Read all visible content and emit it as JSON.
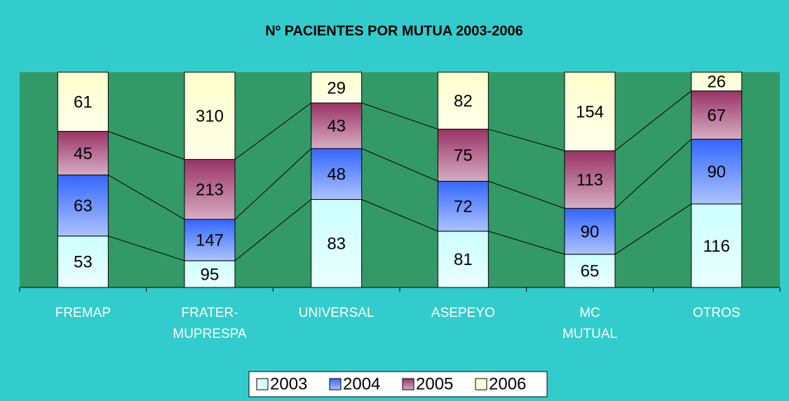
{
  "chart_data": {
    "type": "bar",
    "stacked": "percent",
    "title": "Nº PACIENTES POR MUTUA 2003-2006",
    "categories": [
      "FREMAP",
      "FRATER-MUPRESPA",
      "UNIVERSAL",
      "ASEPEYO",
      "MC MUTUAL",
      "OTROS"
    ],
    "series": [
      {
        "name": "2003",
        "color": "#ccffff",
        "values": [
          53,
          95,
          83,
          81,
          65,
          116
        ]
      },
      {
        "name": "2004",
        "color": "#3366ff",
        "values": [
          63,
          147,
          48,
          72,
          90,
          90
        ]
      },
      {
        "name": "2005",
        "color": "#993366",
        "values": [
          45,
          213,
          43,
          75,
          113,
          67
        ]
      },
      {
        "name": "2006",
        "color": "#ffffcc",
        "values": [
          61,
          310,
          29,
          82,
          154,
          26
        ]
      }
    ],
    "series_lines": true,
    "legend": "bottom"
  }
}
